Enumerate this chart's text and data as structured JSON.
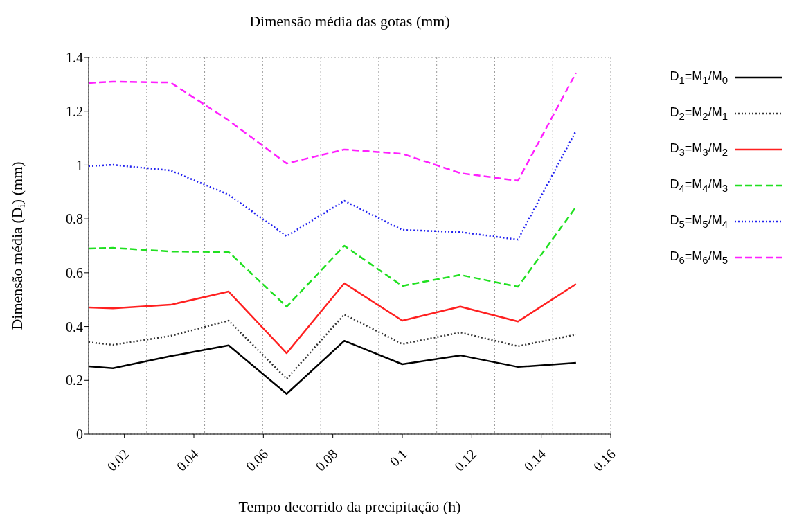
{
  "chart_data": {
    "type": "line",
    "title": "Dimensão média das gotas (mm)",
    "xlabel": "Tempo decorrido da precipitação (h)",
    "ylabel": "Dimensão média (D$_{i}$) (mm)",
    "x": [
      0.0097,
      0.0167,
      0.0333,
      0.05,
      0.0667,
      0.0833,
      0.1,
      0.1167,
      0.1333,
      0.15
    ],
    "series": [
      {
        "name": "D$_{1}$=M$_{1}$/M$_{0}$",
        "color": "#000000",
        "line_style": "solid",
        "values": [
          0.252,
          0.245,
          0.29,
          0.33,
          0.15,
          0.347,
          0.26,
          0.293,
          0.25,
          0.265
        ]
      },
      {
        "name": "D$_{2}$=M$_{2}$/M$_{1}$",
        "color": "#333333",
        "line_style": "dotted",
        "values": [
          0.342,
          0.332,
          0.365,
          0.422,
          0.206,
          0.445,
          0.335,
          0.378,
          0.327,
          0.37
        ]
      },
      {
        "name": "D$_{3}$=M$_{3}$/M$_{2}$",
        "color": "#ff2020",
        "line_style": "solid",
        "values": [
          0.471,
          0.468,
          0.481,
          0.53,
          0.301,
          0.561,
          0.422,
          0.474,
          0.419,
          0.558
        ]
      },
      {
        "name": "D$_{4}$=M$_{4}$/M$_{3}$",
        "color": "#20e020",
        "line_style": "dashed",
        "values": [
          0.69,
          0.692,
          0.679,
          0.677,
          0.474,
          0.7,
          0.551,
          0.592,
          0.548,
          0.844
        ]
      },
      {
        "name": "D$_{5}$=M$_{5}$/M$_{4}$",
        "color": "#2020f0",
        "line_style": "dotted",
        "values": [
          0.996,
          1.001,
          0.98,
          0.89,
          0.736,
          0.867,
          0.759,
          0.751,
          0.723,
          1.127
        ]
      },
      {
        "name": "D$_{6}$=M$_{6}$/M$_{5}$",
        "color": "#ff20ff",
        "line_style": "dashed",
        "values": [
          1.305,
          1.31,
          1.307,
          1.166,
          1.006,
          1.058,
          1.042,
          0.97,
          0.942,
          1.343
        ]
      }
    ],
    "xlim": [
      0.0097,
      0.16
    ],
    "xticks": [
      0.02,
      0.04,
      0.06,
      0.08,
      0.1,
      0.12,
      0.14,
      0.16
    ],
    "ylim": [
      0,
      1.4
    ],
    "yticks": [
      0,
      0.2,
      0.4,
      0.6,
      0.8,
      1,
      1.2,
      1.4
    ],
    "grid": true,
    "legend": "right",
    "marker": "none"
  }
}
